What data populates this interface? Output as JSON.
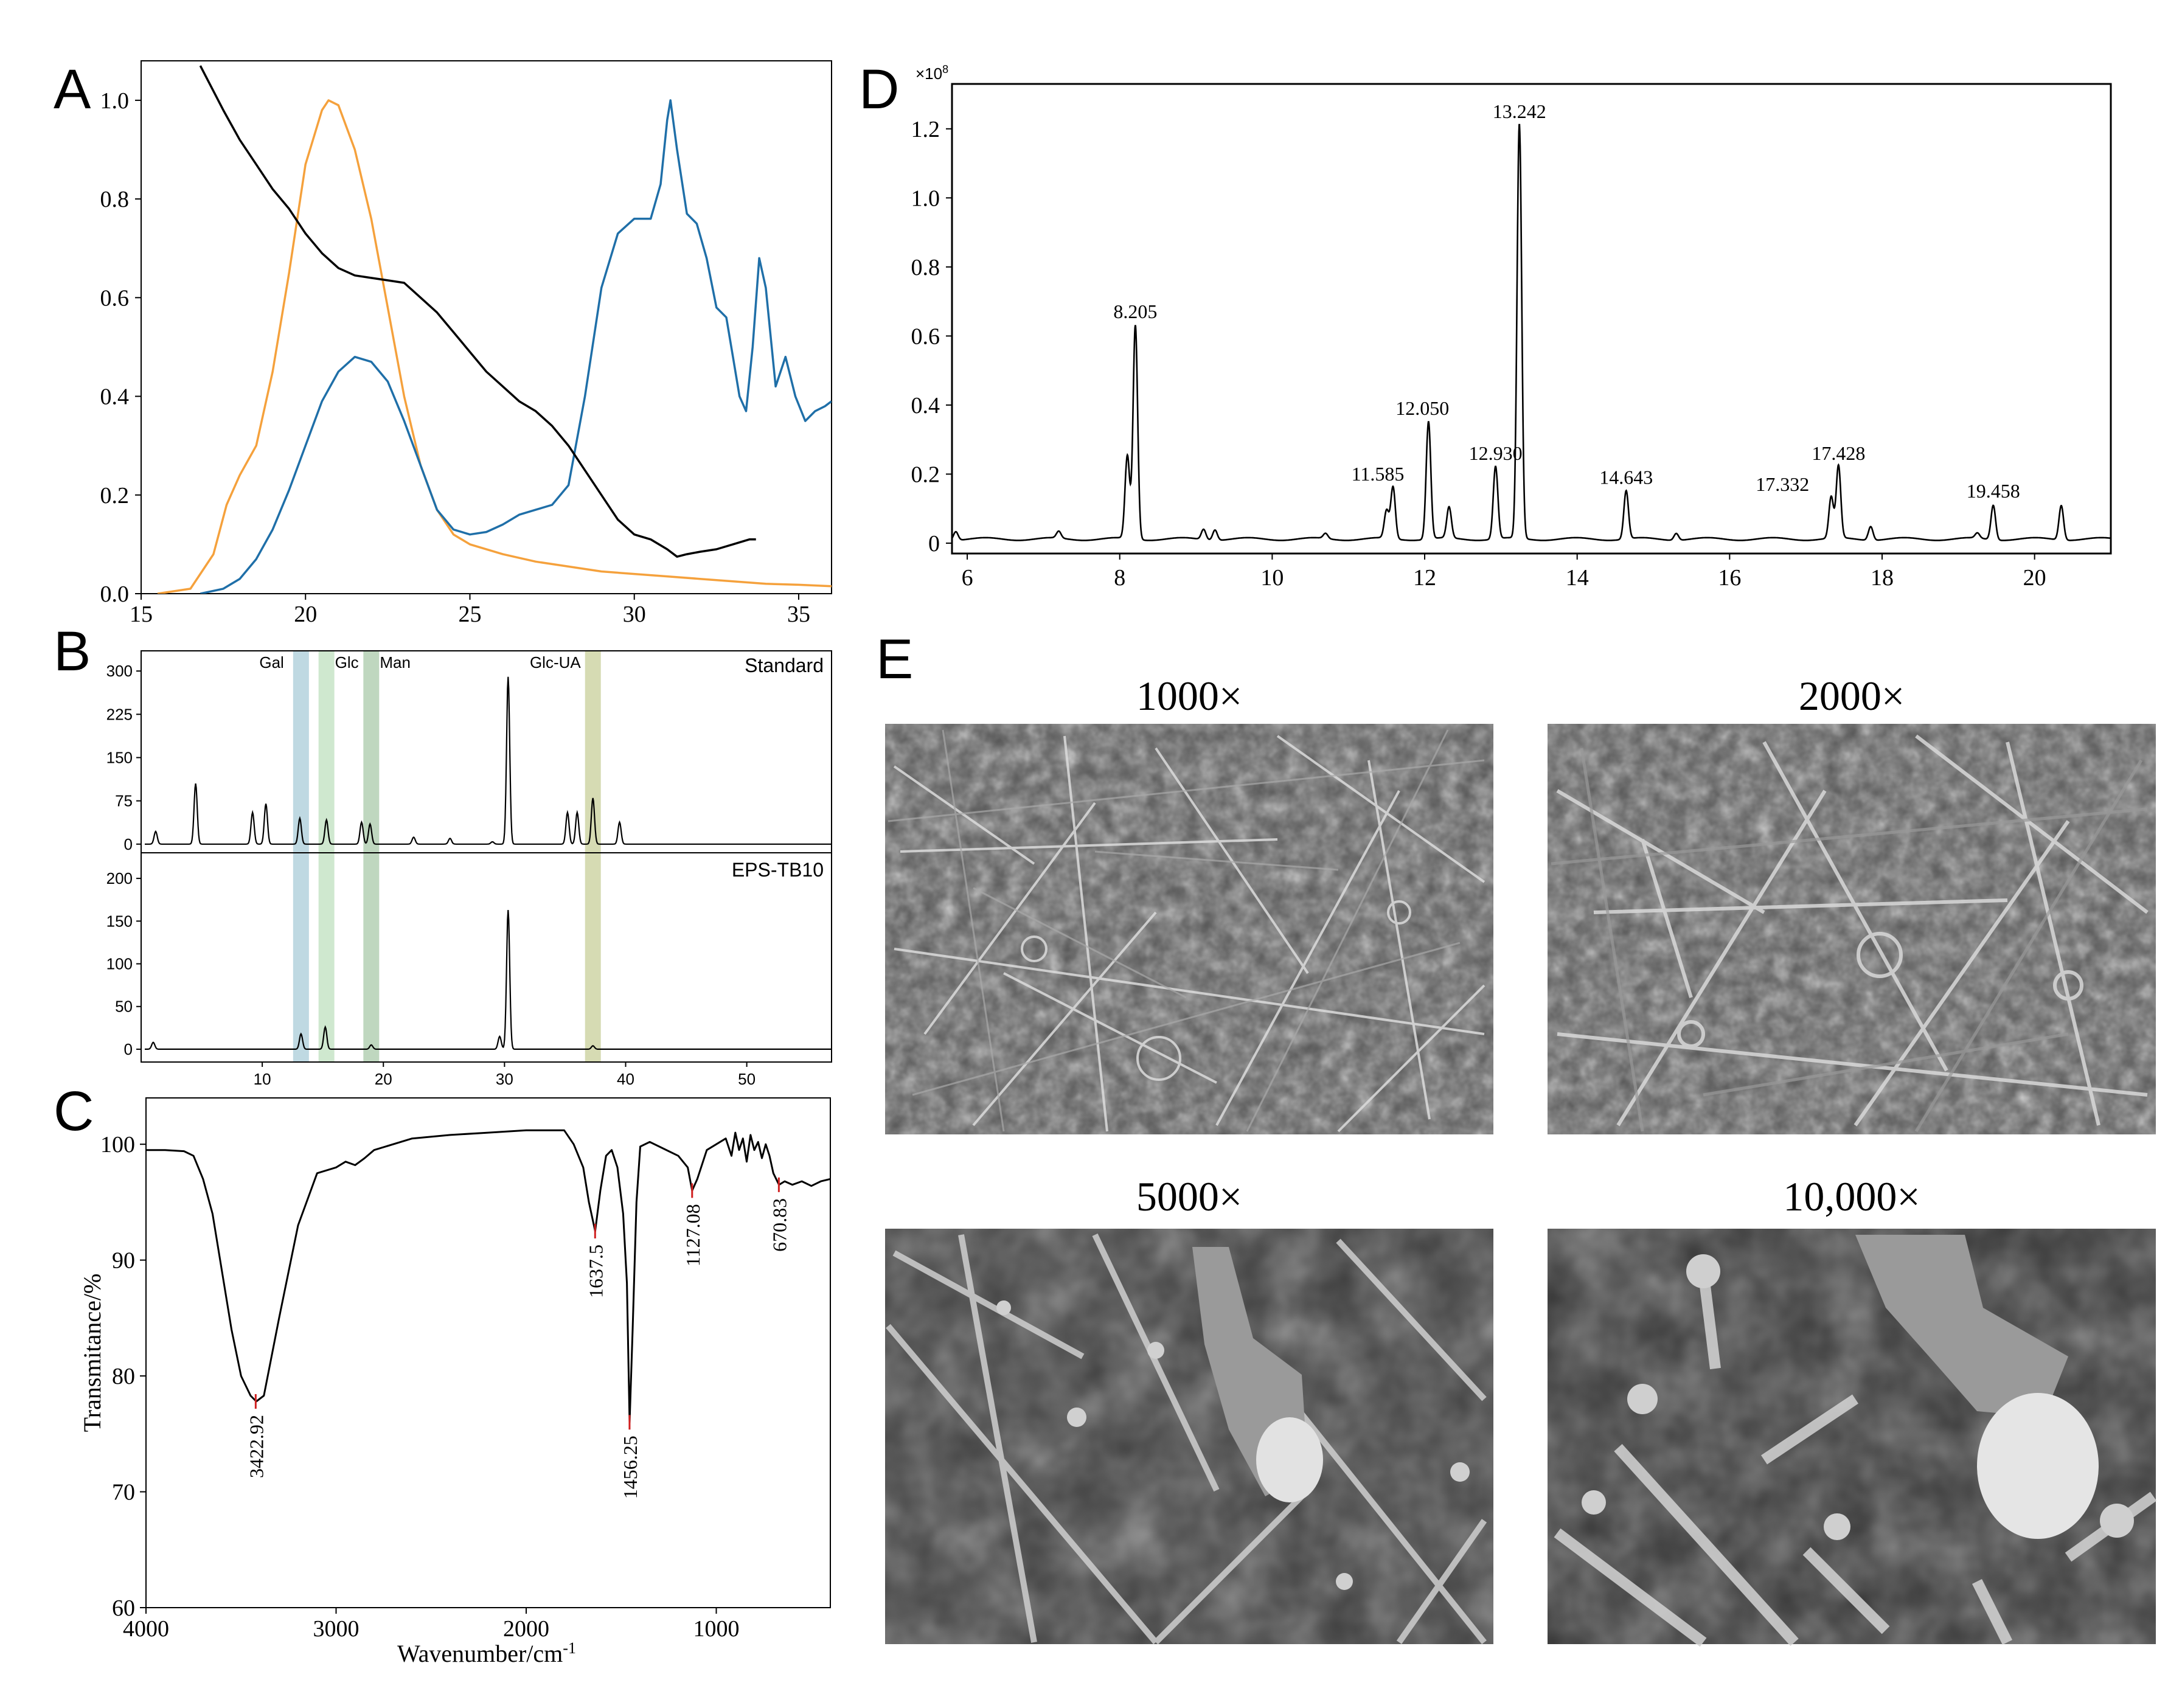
{
  "panel_labels": [
    "A",
    "B",
    "C",
    "D",
    "E"
  ],
  "chart_data": [
    {
      "id": "A",
      "type": "line",
      "xlim": [
        15,
        36
      ],
      "ylim": [
        0,
        1.08
      ],
      "xticks": [
        15,
        20,
        25,
        30,
        35
      ],
      "yticks": [
        "0.0",
        "0.2",
        "0.4",
        "0.6",
        "0.8",
        "1.0"
      ],
      "series": [
        {
          "name": "orange",
          "color": "#f5a13c",
          "x": [
            15.5,
            16.5,
            17.2,
            17.6,
            18.0,
            18.5,
            19.0,
            19.5,
            20.0,
            20.5,
            20.7,
            21.0,
            21.5,
            22.0,
            22.5,
            23.0,
            23.5,
            24.0,
            24.5,
            25.0,
            26.0,
            27.0,
            28.0,
            29.0,
            30.0,
            31.0,
            32.0,
            33.0,
            34.0,
            35.0,
            36.0
          ],
          "y": [
            0.0,
            0.01,
            0.08,
            0.18,
            0.24,
            0.3,
            0.45,
            0.65,
            0.87,
            0.98,
            1.0,
            0.99,
            0.9,
            0.76,
            0.58,
            0.4,
            0.26,
            0.17,
            0.12,
            0.1,
            0.08,
            0.065,
            0.055,
            0.045,
            0.04,
            0.035,
            0.03,
            0.025,
            0.02,
            0.018,
            0.015
          ]
        },
        {
          "name": "blue",
          "color": "#1f6fa8",
          "x": [
            16.8,
            17.5,
            18.0,
            18.5,
            19.0,
            19.5,
            20.0,
            20.5,
            21.0,
            21.5,
            22.0,
            22.5,
            23.0,
            23.5,
            24.0,
            24.5,
            25.0,
            25.5,
            26.0,
            26.5,
            27.0,
            27.5,
            28.0,
            28.5,
            29.0,
            29.5,
            30.0,
            30.5,
            30.8,
            31.0,
            31.1,
            31.3,
            31.6,
            31.9,
            32.2,
            32.5,
            32.8,
            33.0,
            33.2,
            33.4,
            33.6,
            33.8,
            34.0,
            34.3,
            34.6,
            34.9,
            35.2,
            35.5,
            35.8,
            36.0
          ],
          "y": [
            0.0,
            0.01,
            0.03,
            0.07,
            0.13,
            0.21,
            0.3,
            0.39,
            0.45,
            0.48,
            0.47,
            0.43,
            0.35,
            0.26,
            0.17,
            0.13,
            0.12,
            0.125,
            0.14,
            0.16,
            0.17,
            0.18,
            0.22,
            0.4,
            0.62,
            0.73,
            0.76,
            0.76,
            0.83,
            0.96,
            1.0,
            0.9,
            0.77,
            0.75,
            0.68,
            0.58,
            0.56,
            0.48,
            0.4,
            0.37,
            0.5,
            0.68,
            0.62,
            0.42,
            0.48,
            0.4,
            0.35,
            0.37,
            0.38,
            0.39
          ]
        },
        {
          "name": "black",
          "color": "#000000",
          "x": [
            16.8,
            17.5,
            18.0,
            18.5,
            19.0,
            19.5,
            20.0,
            20.5,
            21.0,
            21.5,
            22.0,
            22.5,
            23.0,
            23.5,
            24.0,
            24.5,
            25.0,
            25.5,
            26.0,
            26.5,
            27.0,
            27.5,
            28.0,
            28.5,
            29.0,
            29.5,
            30.0,
            30.5,
            31.0,
            31.3,
            31.6,
            32.0,
            32.5,
            33.0,
            33.5,
            33.7
          ],
          "y": [
            1.07,
            0.98,
            0.92,
            0.87,
            0.82,
            0.78,
            0.73,
            0.69,
            0.66,
            0.645,
            0.64,
            0.635,
            0.63,
            0.6,
            0.57,
            0.53,
            0.49,
            0.45,
            0.42,
            0.39,
            0.37,
            0.34,
            0.3,
            0.25,
            0.2,
            0.15,
            0.12,
            0.11,
            0.09,
            0.075,
            0.08,
            0.085,
            0.09,
            0.1,
            0.11,
            0.11
          ]
        }
      ]
    },
    {
      "id": "B",
      "type": "line",
      "xlim": [
        0,
        57
      ],
      "xticks": [
        "10",
        "20",
        "30",
        "40",
        "50"
      ],
      "traces": [
        {
          "name": "Standard",
          "ylim": [
            -15,
            335
          ],
          "yticks": [
            "0",
            "75",
            "150",
            "225",
            "300"
          ],
          "peaks": [
            [
              1.2,
              22
            ],
            [
              4.5,
              105
            ],
            [
              9.2,
              55
            ],
            [
              10.3,
              70
            ],
            [
              13.1,
              45
            ],
            [
              15.3,
              42
            ],
            [
              18.2,
              38
            ],
            [
              18.9,
              35
            ],
            [
              22.5,
              12
            ],
            [
              25.5,
              10
            ],
            [
              29.0,
              4
            ],
            [
              30.3,
              290
            ],
            [
              35.2,
              55
            ],
            [
              36.0,
              55
            ],
            [
              37.3,
              80
            ],
            [
              39.5,
              38
            ]
          ]
        },
        {
          "name": "EPS-TB10",
          "ylim": [
            -15,
            230
          ],
          "yticks": [
            "0",
            "50",
            "100",
            "150",
            "200"
          ],
          "peaks": [
            [
              1.0,
              8
            ],
            [
              13.2,
              18
            ],
            [
              15.2,
              26
            ],
            [
              19.0,
              5
            ],
            [
              29.6,
              15
            ],
            [
              30.3,
              163
            ],
            [
              37.3,
              4
            ]
          ]
        }
      ],
      "bands": [
        {
          "label": "Gal",
          "center": 13.2,
          "color": "#a9ccd8"
        },
        {
          "label": "Glc",
          "center": 15.3,
          "color": "#bfe0bf"
        },
        {
          "label": "Man",
          "center": 19.0,
          "color": "#a9c9a9"
        },
        {
          "label": "Glc-UA",
          "center": 37.3,
          "color": "#c8cf9a"
        }
      ]
    },
    {
      "id": "C",
      "type": "line",
      "xlim": [
        4000,
        400
      ],
      "ylim": [
        60,
        104
      ],
      "xticks": [
        "4000",
        "3000",
        "2000",
        "1000"
      ],
      "yticks": [
        "60",
        "70",
        "80",
        "90",
        "100"
      ],
      "xlabel": "Wavenumber/cm",
      "xlabel_sup": "-1",
      "ylabel": "Transmitance/%",
      "x": [
        4000,
        3900,
        3800,
        3750,
        3700,
        3650,
        3600,
        3550,
        3500,
        3450,
        3420,
        3380,
        3300,
        3200,
        3100,
        3000,
        2950,
        2900,
        2850,
        2800,
        2600,
        2400,
        2200,
        2000,
        1800,
        1750,
        1700,
        1670,
        1637,
        1610,
        1580,
        1550,
        1520,
        1490,
        1470,
        1456,
        1440,
        1420,
        1400,
        1350,
        1300,
        1250,
        1200,
        1150,
        1127,
        1100,
        1050,
        1000,
        950,
        920,
        900,
        880,
        860,
        840,
        820,
        800,
        780,
        760,
        740,
        720,
        700,
        670,
        640,
        600,
        550,
        500,
        450,
        400
      ],
      "y": [
        99.5,
        99.5,
        99.4,
        99,
        97,
        94,
        89,
        84,
        80,
        78.3,
        77.8,
        78.3,
        85,
        93,
        97.5,
        98,
        98.5,
        98.2,
        98.8,
        99.5,
        100.5,
        100.8,
        101,
        101.2,
        101.2,
        100,
        98,
        95,
        92.5,
        96,
        99,
        99.5,
        98,
        94,
        88,
        76,
        84,
        95,
        99.8,
        100.2,
        99.8,
        99.4,
        99,
        98,
        96,
        97,
        99.5,
        100,
        100.5,
        99,
        101,
        99.5,
        100.5,
        98.5,
        100.8,
        99.5,
        100.2,
        98.8,
        100,
        99,
        97.5,
        96.5,
        96.8,
        96.5,
        96.8,
        96.4,
        96.8,
        97
      ]
    },
    {
      "id": "D",
      "type": "line",
      "xlim": [
        5.8,
        21
      ],
      "ylim": [
        -0.03,
        1.33
      ],
      "xticks": [
        "6",
        "8",
        "10",
        "12",
        "14",
        "16",
        "18",
        "20"
      ],
      "yticks": [
        "0",
        "0.2",
        "0.4",
        "0.6",
        "0.8",
        "1.0",
        "1.2"
      ],
      "y_multiplier": "×10",
      "y_multiplier_exp": "8",
      "peaks": [
        [
          5.85,
          0.025
        ],
        [
          7.2,
          0.02
        ],
        [
          8.1,
          0.24
        ],
        [
          8.205,
          0.62
        ],
        [
          9.1,
          0.03
        ],
        [
          9.25,
          0.03
        ],
        [
          10.7,
          0.015
        ],
        [
          11.5,
          0.08
        ],
        [
          11.585,
          0.15
        ],
        [
          12.05,
          0.34
        ],
        [
          12.32,
          0.09
        ],
        [
          12.93,
          0.21
        ],
        [
          13.242,
          1.2
        ],
        [
          14.643,
          0.14
        ],
        [
          15.3,
          0.02
        ],
        [
          17.332,
          0.12
        ],
        [
          17.428,
          0.21
        ],
        [
          17.85,
          0.04
        ],
        [
          19.25,
          0.015
        ],
        [
          19.458,
          0.1
        ],
        [
          20.35,
          0.1
        ]
      ],
      "labels": [
        "8.205",
        "11.585",
        "12.050",
        "12.930",
        "13.242",
        "14.643",
        "17.332",
        "17.428",
        "19.458"
      ]
    }
  ],
  "sem": {
    "panels": [
      {
        "label": "1000×"
      },
      {
        "label": "2000×"
      },
      {
        "label": "5000×"
      },
      {
        "label": "10,000×"
      }
    ]
  },
  "panel_C_annotations": [
    "3422.92",
    "1637.5",
    "1456.25",
    "1127.08",
    "670.83"
  ]
}
